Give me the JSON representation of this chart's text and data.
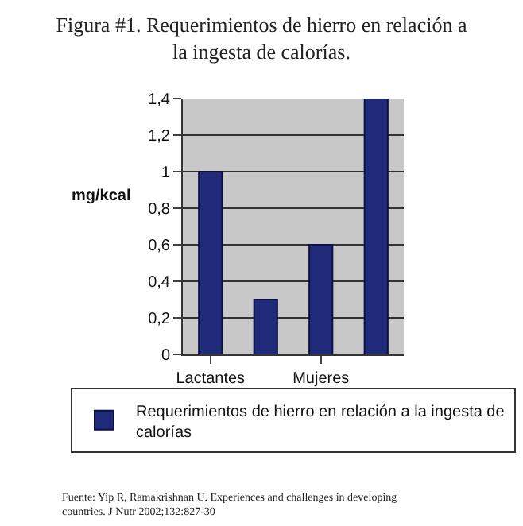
{
  "chart_data": {
    "type": "bar",
    "title": "Figura #1. Requerimientos de hierro en relación a la ingesta de calorías.",
    "ylabel": "mg/kcal",
    "categories": [
      "Lactantes",
      null,
      "Mujeres",
      null
    ],
    "series": [
      {
        "name": "Requerimientos de hierro en relación a la ingesta de calorías",
        "color": "#1f2a7a",
        "values": [
          1,
          0.3,
          0.6,
          1.4
        ]
      }
    ],
    "ylim": [
      0,
      1.4
    ],
    "yticks": [
      0,
      {
        "value": 0.2,
        "label": "0,2"
      },
      {
        "value": 0.4,
        "label": "0,4"
      },
      {
        "value": 0.6,
        "label": "0,6"
      },
      {
        "value": 0.8,
        "label": "0,8"
      },
      1,
      {
        "value": 1.2,
        "label": "1,2"
      },
      {
        "value": 1.4,
        "label": "1,4"
      }
    ],
    "grid": "y",
    "legend": "bottom",
    "annotations": [
      "Fuente: Yip R, Ramakrishnan U. Experiences and challenges in developing countries. J Nutr 2002;132:827-30"
    ]
  }
}
